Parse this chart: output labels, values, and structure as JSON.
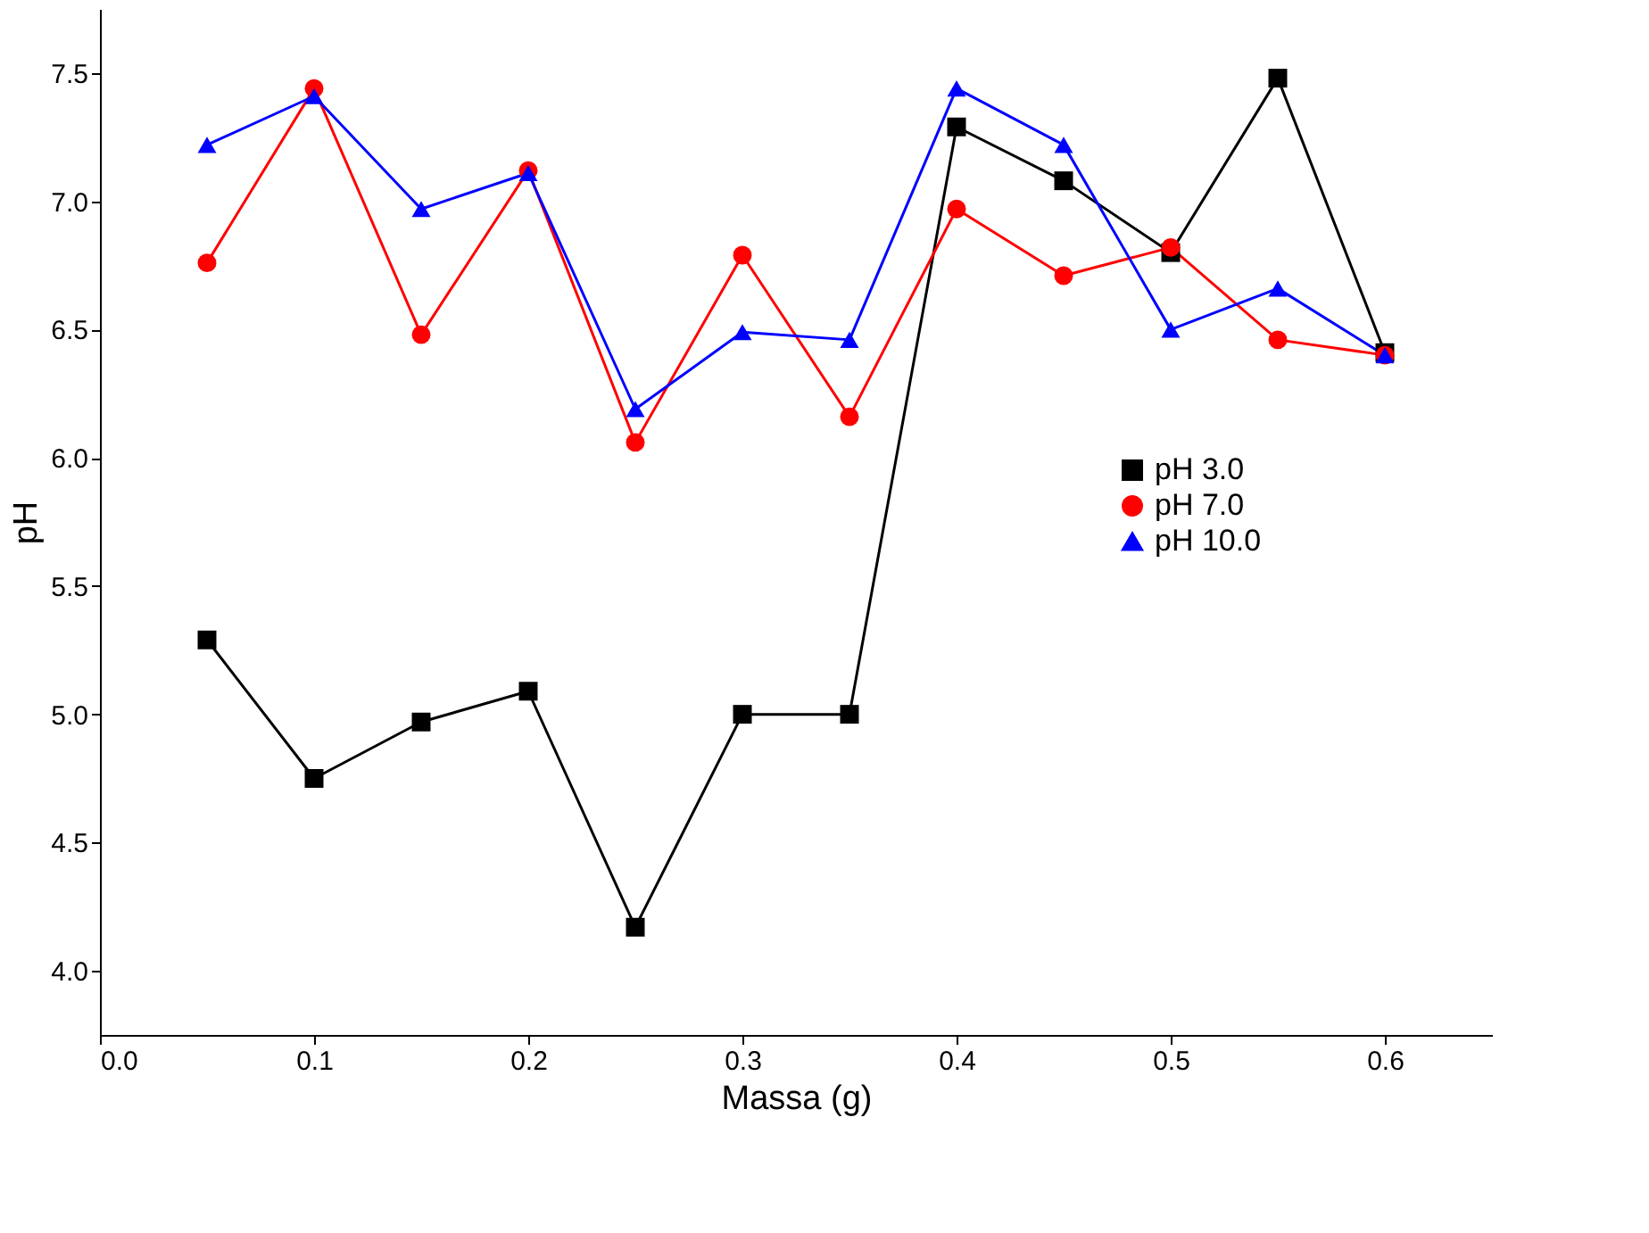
{
  "chart_data": {
    "type": "line",
    "xlabel": "Massa (g)",
    "ylabel": "pH",
    "x": [
      0.05,
      0.1,
      0.15,
      0.2,
      0.25,
      0.3,
      0.35,
      0.4,
      0.45,
      0.5,
      0.55,
      0.6
    ],
    "series": [
      {
        "name": "pH 3.0",
        "color": "#000000",
        "marker": "square",
        "values": [
          5.29,
          4.75,
          4.97,
          5.09,
          4.17,
          5.0,
          5.0,
          7.29,
          7.08,
          6.8,
          7.48,
          6.41
        ]
      },
      {
        "name": "pH 7.0",
        "color": "#ff0000",
        "marker": "circle",
        "values": [
          6.76,
          7.44,
          6.48,
          7.12,
          6.06,
          6.79,
          6.16,
          6.97,
          6.71,
          6.82,
          6.46,
          6.4
        ]
      },
      {
        "name": "pH 10.0",
        "color": "#0000ff",
        "marker": "triangle",
        "values": [
          7.22,
          7.41,
          6.97,
          7.11,
          6.19,
          6.49,
          6.46,
          7.44,
          7.22,
          6.5,
          6.66,
          6.4
        ]
      }
    ],
    "xlim": [
      0.0,
      0.65
    ],
    "xticks": [
      {
        "value": 0.0,
        "label": "0.0"
      },
      0.1,
      0.2,
      0.3,
      0.4,
      0.5,
      0.6
    ],
    "ylim": [
      3.75,
      7.75
    ],
    "yticks": [
      {
        "value": 4.0,
        "label": "4.0"
      },
      4.5,
      {
        "value": 5.0,
        "label": "5.0"
      },
      5.5,
      {
        "value": 6.0,
        "label": "6.0"
      },
      6.5,
      {
        "value": 7.0,
        "label": "7.0"
      },
      7.5
    ],
    "grid": false,
    "legend": "right",
    "line_style": "solid"
  }
}
